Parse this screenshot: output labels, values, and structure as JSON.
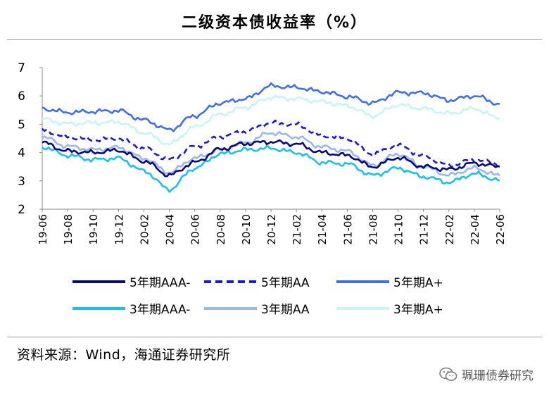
{
  "chart_data": {
    "type": "line",
    "title": "二级资本债收益率（%）",
    "xlabel": "",
    "ylabel": "",
    "ylim": [
      2,
      7
    ],
    "yticks": [
      "2",
      "3",
      "4",
      "5",
      "6",
      "7"
    ],
    "categories": [
      "19-06",
      "19-08",
      "19-10",
      "19-12",
      "20-02",
      "20-04",
      "20-06",
      "20-08",
      "20-10",
      "20-12",
      "21-02",
      "21-04",
      "21-06",
      "21-08",
      "21-10",
      "21-12",
      "22-02",
      "22-04",
      "22-06"
    ],
    "legend_position": "bottom",
    "grid": false,
    "series": [
      {
        "name": "5年期AAA-",
        "color": "#0a0a7a",
        "dash": "solid",
        "values": [
          4.35,
          4.05,
          4.0,
          4.08,
          3.7,
          3.2,
          3.65,
          4.12,
          4.32,
          4.38,
          4.3,
          4.0,
          3.9,
          3.5,
          3.82,
          3.5,
          3.4,
          3.62,
          3.5
        ]
      },
      {
        "name": "5年期AA",
        "color": "#1a1ad6",
        "dash": "dashed",
        "values": [
          4.78,
          4.55,
          4.45,
          4.5,
          4.15,
          3.75,
          4.22,
          4.55,
          4.75,
          5.05,
          4.98,
          4.6,
          4.5,
          3.95,
          4.25,
          3.88,
          3.55,
          3.75,
          3.6
        ]
      },
      {
        "name": "5年期A+",
        "color": "#3f6ee6",
        "dash": "solid",
        "values": [
          5.55,
          5.42,
          5.45,
          5.48,
          5.15,
          4.8,
          5.3,
          5.75,
          5.9,
          6.35,
          6.3,
          6.15,
          5.98,
          5.75,
          6.12,
          6.1,
          5.85,
          6.0,
          5.72
        ]
      },
      {
        "name": "3年期AAA-",
        "color": "#1cc0ea",
        "dash": "solid",
        "values": [
          4.2,
          3.9,
          3.75,
          3.8,
          3.35,
          2.7,
          3.45,
          3.95,
          4.1,
          4.15,
          4.0,
          3.65,
          3.6,
          3.2,
          3.45,
          3.15,
          2.95,
          3.25,
          3.02
        ]
      },
      {
        "name": "3年期AA",
        "color": "#9ab8ec",
        "dash": "solid",
        "values": [
          4.55,
          4.22,
          4.1,
          4.18,
          3.8,
          3.3,
          3.8,
          4.1,
          4.35,
          4.7,
          4.55,
          4.2,
          4.05,
          3.55,
          3.95,
          3.5,
          3.2,
          3.45,
          3.18
        ]
      },
      {
        "name": "3年期A+",
        "color": "#c8f4f6",
        "dash": "solid",
        "values": [
          5.18,
          5.02,
          5.05,
          5.08,
          4.7,
          4.3,
          4.9,
          5.35,
          5.6,
          5.95,
          5.9,
          5.8,
          5.65,
          5.3,
          5.68,
          5.55,
          5.38,
          5.55,
          5.2
        ]
      }
    ]
  },
  "source_text": "资料来源：Wind，海通证券研究所",
  "watermark_text": "珮珊债券研究"
}
